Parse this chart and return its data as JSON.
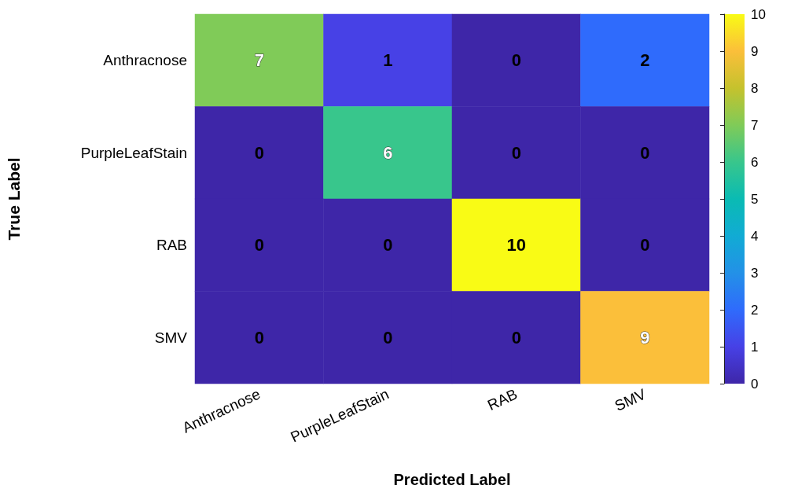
{
  "chart_data": {
    "type": "heatmap",
    "xlabel": "Predicted Label",
    "ylabel": "True Label",
    "categories": [
      "Anthracnose",
      "PurpleLeafStain",
      "RAB",
      "SMV"
    ],
    "y_categories": [
      "Anthracnose",
      "PurpleLeafStain",
      "RAB",
      "SMV"
    ],
    "cells": [
      [
        7,
        1,
        0,
        2
      ],
      [
        0,
        6,
        0,
        0
      ],
      [
        0,
        0,
        10,
        0
      ],
      [
        0,
        0,
        0,
        9
      ]
    ],
    "data_labels": true,
    "clim": [
      0,
      10
    ],
    "cticks": [
      0,
      1,
      2,
      3,
      4,
      5,
      6,
      7,
      8,
      9,
      10
    ]
  }
}
